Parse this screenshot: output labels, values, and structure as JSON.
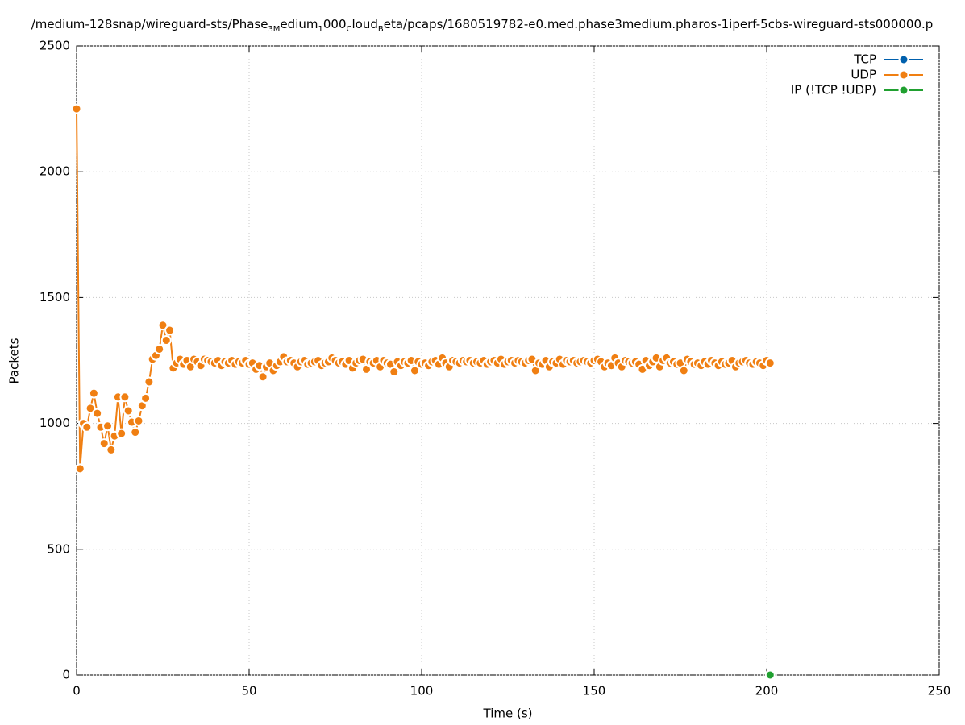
{
  "chart_data": {
    "type": "line",
    "title": [
      {
        "text": "/medium-128snap/wireguard-sts/Phase"
      },
      {
        "text": "3M",
        "sub": true
      },
      {
        "text": "edium"
      },
      {
        "text": "1",
        "sub": true
      },
      {
        "text": "000"
      },
      {
        "text": "C",
        "sub": true
      },
      {
        "text": "loud"
      },
      {
        "text": "B",
        "sub": true
      },
      {
        "text": "eta/pcaps/1680519782-e0.med.phase3medium.pharos-1iperf-5cbs-wireguard-sts000000.p"
      }
    ],
    "x_label": "Time (s)",
    "y_label": "Packets",
    "xlim": [
      0,
      250
    ],
    "xticks": [
      0,
      50,
      100,
      150,
      200,
      250
    ],
    "ylim": [
      0,
      2500
    ],
    "yticks": [
      0,
      500,
      1000,
      1500,
      2000,
      2500
    ],
    "grid": true,
    "legend": "top-right",
    "series": [
      {
        "name": "TCP",
        "color": "#0060ad",
        "x": [],
        "values": []
      },
      {
        "name": "UDP",
        "color": "#f07f12",
        "x": [
          0,
          1,
          2,
          3,
          4,
          5,
          6,
          7,
          8,
          9,
          10,
          11,
          12,
          13,
          14,
          15,
          16,
          17,
          18,
          19,
          20,
          21,
          22,
          23,
          24,
          25,
          26,
          27,
          28,
          29,
          30,
          31,
          32,
          33,
          34,
          35,
          36,
          37,
          38,
          39,
          40,
          41,
          42,
          43,
          44,
          45,
          46,
          47,
          48,
          49,
          50,
          51,
          52,
          53,
          54,
          55,
          56,
          57,
          58,
          59,
          60,
          61,
          62,
          63,
          64,
          65,
          66,
          67,
          68,
          69,
          70,
          71,
          72,
          73,
          74,
          75,
          76,
          77,
          78,
          79,
          80,
          81,
          82,
          83,
          84,
          85,
          86,
          87,
          88,
          89,
          90,
          91,
          92,
          93,
          94,
          95,
          96,
          97,
          98,
          99,
          100,
          101,
          102,
          103,
          104,
          105,
          106,
          107,
          108,
          109,
          110,
          111,
          112,
          113,
          114,
          115,
          116,
          117,
          118,
          119,
          120,
          121,
          122,
          123,
          124,
          125,
          126,
          127,
          128,
          129,
          130,
          131,
          132,
          133,
          134,
          135,
          136,
          137,
          138,
          139,
          140,
          141,
          142,
          143,
          144,
          145,
          146,
          147,
          148,
          149,
          150,
          151,
          152,
          153,
          154,
          155,
          156,
          157,
          158,
          159,
          160,
          161,
          162,
          163,
          164,
          165,
          166,
          167,
          168,
          169,
          170,
          171,
          172,
          173,
          174,
          175,
          176,
          177,
          178,
          179,
          180,
          181,
          182,
          183,
          184,
          185,
          186,
          187,
          188,
          189,
          190,
          191,
          192,
          193,
          194,
          195,
          196,
          197,
          198,
          199,
          200,
          201
        ],
        "values": [
          2250,
          820,
          1000,
          985,
          1060,
          1120,
          1040,
          985,
          920,
          990,
          895,
          950,
          1105,
          960,
          1105,
          1050,
          1005,
          965,
          1010,
          1070,
          1100,
          1165,
          1255,
          1270,
          1295,
          1390,
          1330,
          1370,
          1220,
          1240,
          1255,
          1235,
          1250,
          1225,
          1255,
          1245,
          1230,
          1255,
          1250,
          1245,
          1240,
          1250,
          1230,
          1245,
          1240,
          1250,
          1235,
          1245,
          1240,
          1250,
          1235,
          1240,
          1215,
          1230,
          1185,
          1225,
          1240,
          1210,
          1230,
          1245,
          1265,
          1245,
          1250,
          1240,
          1225,
          1245,
          1250,
          1235,
          1240,
          1245,
          1250,
          1230,
          1240,
          1245,
          1260,
          1250,
          1240,
          1245,
          1235,
          1250,
          1220,
          1240,
          1250,
          1255,
          1215,
          1245,
          1240,
          1250,
          1225,
          1250,
          1240,
          1235,
          1205,
          1245,
          1230,
          1245,
          1240,
          1250,
          1210,
          1245,
          1235,
          1240,
          1230,
          1245,
          1250,
          1235,
          1260,
          1240,
          1225,
          1250,
          1245,
          1240,
          1250,
          1245,
          1250,
          1240,
          1245,
          1240,
          1250,
          1235,
          1245,
          1250,
          1240,
          1255,
          1235,
          1245,
          1250,
          1240,
          1250,
          1245,
          1240,
          1250,
          1255,
          1210,
          1240,
          1235,
          1250,
          1225,
          1245,
          1240,
          1255,
          1235,
          1250,
          1245,
          1250,
          1240,
          1245,
          1250,
          1245,
          1240,
          1250,
          1255,
          1245,
          1225,
          1240,
          1230,
          1260,
          1240,
          1225,
          1250,
          1245,
          1240,
          1245,
          1235,
          1215,
          1250,
          1230,
          1245,
          1260,
          1225,
          1250,
          1260,
          1240,
          1245,
          1235,
          1240,
          1210,
          1255,
          1245,
          1235,
          1240,
          1230,
          1245,
          1235,
          1250,
          1240,
          1230,
          1245,
          1235,
          1240,
          1250,
          1225,
          1240,
          1245,
          1250,
          1240,
          1235,
          1245,
          1240,
          1230,
          1250,
          1240
        ]
      },
      {
        "name": "IP (!TCP  !UDP)",
        "color": "#20a030",
        "x": [
          201
        ],
        "values": [
          0
        ]
      }
    ]
  }
}
